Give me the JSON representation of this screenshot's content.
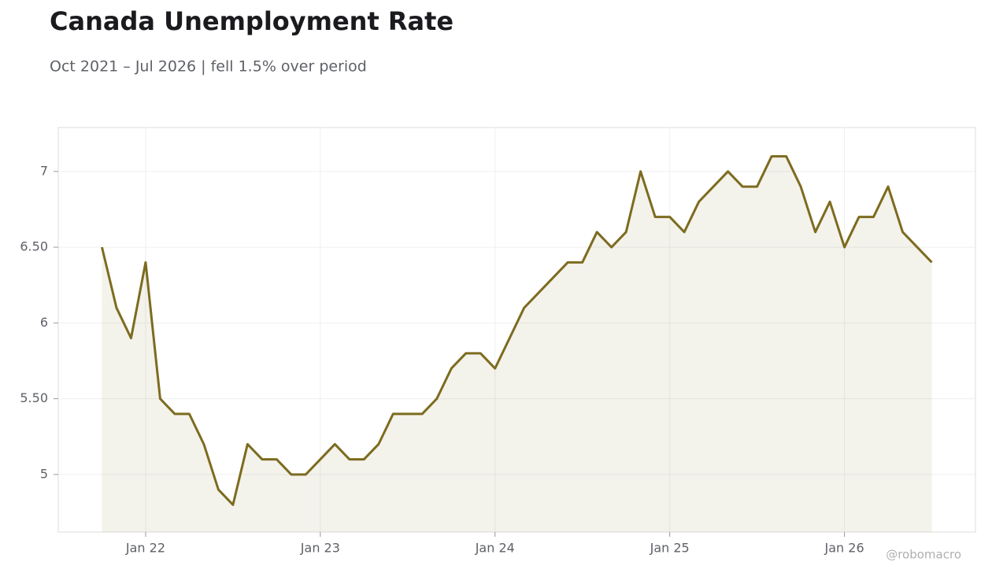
{
  "chart_data": {
    "type": "line",
    "title": "Canada Unemployment Rate",
    "subtitle": "Oct 2021 – Jul 2026 | fell 1.5% over period",
    "watermark": "@robomacro",
    "x": [
      "2021-10",
      "2021-11",
      "2021-12",
      "2022-01",
      "2022-02",
      "2022-03",
      "2022-04",
      "2022-05",
      "2022-06",
      "2022-07",
      "2022-08",
      "2022-09",
      "2022-10",
      "2022-11",
      "2022-12",
      "2023-01",
      "2023-02",
      "2023-03",
      "2023-04",
      "2023-05",
      "2023-06",
      "2023-07",
      "2023-08",
      "2023-09",
      "2023-10",
      "2023-11",
      "2023-12",
      "2024-01",
      "2024-02",
      "2024-03",
      "2024-04",
      "2024-05",
      "2024-06",
      "2024-07",
      "2024-08",
      "2024-09",
      "2024-10",
      "2024-11",
      "2024-12",
      "2025-01",
      "2025-02",
      "2025-03",
      "2025-04",
      "2025-05",
      "2025-06",
      "2025-07",
      "2025-08",
      "2025-09",
      "2025-10",
      "2025-11",
      "2025-12",
      "2026-01",
      "2026-02",
      "2026-03",
      "2026-04",
      "2026-05",
      "2026-06",
      "2026-07"
    ],
    "series": [
      {
        "name": "Unemployment Rate",
        "color": "#7d6b1f",
        "values": [
          6.5,
          6.1,
          5.9,
          6.4,
          5.5,
          5.4,
          5.4,
          5.2,
          4.9,
          4.8,
          5.2,
          5.1,
          5.1,
          5.0,
          5.0,
          5.1,
          5.2,
          5.1,
          5.1,
          5.2,
          5.4,
          5.4,
          5.4,
          5.5,
          5.7,
          5.8,
          5.8,
          5.7,
          5.9,
          6.1,
          6.2,
          6.3,
          6.4,
          6.4,
          6.6,
          6.5,
          6.6,
          7.0,
          6.7,
          6.7,
          6.6,
          6.8,
          6.9,
          7.0,
          6.9,
          6.9,
          7.1,
          7.1,
          6.9,
          6.6,
          6.8,
          6.5,
          6.7,
          6.7,
          6.9,
          6.6,
          6.5,
          6.4
        ]
      }
    ],
    "xlim": [
      "2021-07",
      "2026-10"
    ],
    "xticks": [
      {
        "value": "2022-01",
        "label": "Jan 22"
      },
      {
        "value": "2023-01",
        "label": "Jan 23"
      },
      {
        "value": "2024-01",
        "label": "Jan 24"
      },
      {
        "value": "2025-01",
        "label": "Jan 25"
      },
      {
        "value": "2026-01",
        "label": "Jan 26"
      }
    ],
    "ylim": [
      4.62,
      7.29
    ],
    "yticks": [
      5,
      {
        "value": 5.5,
        "label": "5.50"
      },
      6,
      {
        "value": 6.5,
        "label": "6.50"
      },
      7
    ],
    "grid": true,
    "area_fill": true
  }
}
